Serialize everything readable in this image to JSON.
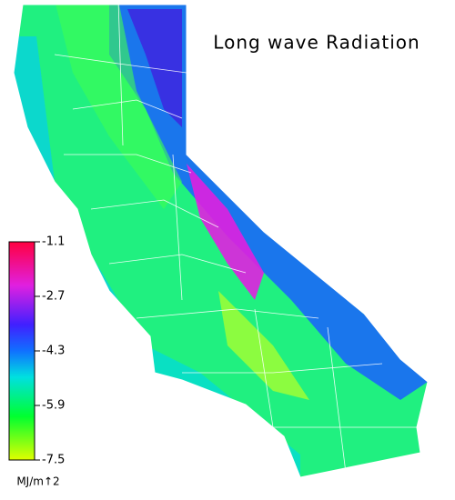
{
  "title": "Long wave Radiation",
  "colorbar": {
    "lim": [
      -7.5,
      -1.1
    ],
    "ticks": [
      -1.1,
      -2.7,
      -4.3,
      -5.9,
      -7.5
    ],
    "unit": "MJ/m↑2"
  }
}
